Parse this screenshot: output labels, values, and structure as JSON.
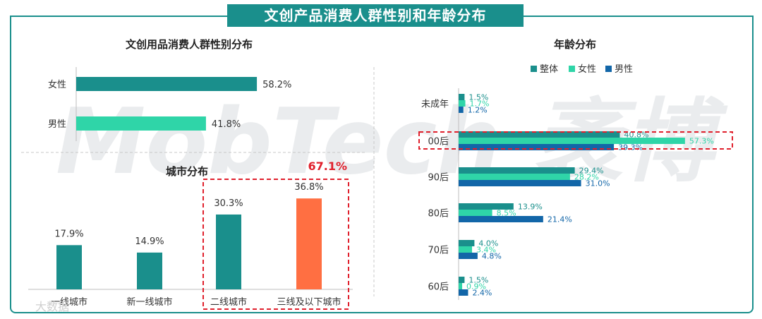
{
  "title": "文创产品消费人群性别和年龄分布",
  "watermark": "MobTech 袤博",
  "footer_watermark": "大数据",
  "colors": {
    "teal": "#1a8f8c",
    "mint": "#2fd5a8",
    "blue": "#1266a8",
    "orange": "#ff6f42",
    "red": "#e0202c"
  },
  "chart_data": [
    {
      "type": "bar",
      "orientation": "horizontal",
      "title": "文创用品消费人群性别分布",
      "categories": [
        "女性",
        "男性"
      ],
      "values": [
        58.2,
        41.8
      ],
      "value_labels": [
        "58.2%",
        "41.8%"
      ],
      "xlim": [
        0,
        100
      ]
    },
    {
      "type": "bar",
      "title": "城市分布",
      "categories": [
        "一线城市",
        "新一线城市",
        "二线城市",
        "三线及以下城市"
      ],
      "values": [
        17.9,
        14.9,
        30.3,
        36.8
      ],
      "value_labels": [
        "17.9%",
        "14.9%",
        "30.3%",
        "36.8%"
      ],
      "highlight_total": "67.1%",
      "ylim": [
        0,
        40
      ]
    },
    {
      "type": "bar",
      "orientation": "horizontal",
      "title": "年龄分布",
      "legend_position": "top",
      "categories": [
        "未成年",
        "00后",
        "90后",
        "80后",
        "70后",
        "60后"
      ],
      "series": [
        {
          "name": "整体",
          "values": [
            1.5,
            40.8,
            29.4,
            13.9,
            4.0,
            1.5
          ],
          "labels": [
            "1.5%",
            "40.8%",
            "29.4%",
            "13.9%",
            "4.0%",
            "1.5%"
          ]
        },
        {
          "name": "女性",
          "values": [
            1.7,
            57.3,
            28.2,
            8.5,
            3.4,
            0.9
          ],
          "labels": [
            "1.7%",
            "57.3%",
            "28.2%",
            "8.5%",
            "3.4%",
            "0.9%"
          ]
        },
        {
          "name": "男性",
          "values": [
            1.2,
            39.3,
            31.0,
            21.4,
            4.8,
            2.4
          ],
          "labels": [
            "1.2%",
            "39.3%",
            "31.0%",
            "21.4%",
            "4.8%",
            "2.4%"
          ]
        }
      ],
      "xlim": [
        0,
        60
      ]
    }
  ]
}
